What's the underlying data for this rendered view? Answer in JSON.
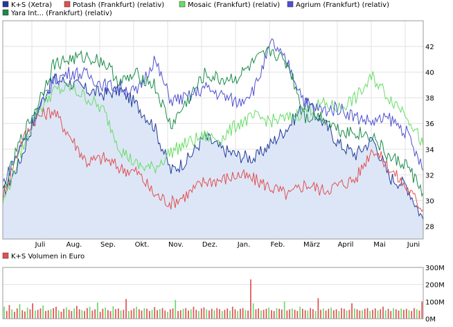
{
  "chart_data": [
    {
      "type": "line",
      "title": "",
      "xlabel": "",
      "ylabel": "",
      "ylim": [
        27,
        44
      ],
      "yticks": [
        28,
        30,
        32,
        34,
        36,
        38,
        40,
        42
      ],
      "grid": true,
      "legend_position": "top-left",
      "x_tick_labels": [
        "Juli",
        "Aug.",
        "Sep.",
        "Okt.",
        "Nov.",
        "Dez.",
        "Jan.",
        "Feb.",
        "März",
        "April",
        "Mai",
        "Juni"
      ],
      "x": [
        0,
        0.5,
        1,
        1.5,
        2,
        2.5,
        3,
        3.5,
        4,
        4.5,
        5,
        5.5,
        6,
        6.5,
        7,
        7.5,
        8,
        8.5,
        9,
        9.5,
        10,
        10.5,
        11,
        11.5,
        12,
        12.5
      ],
      "series": [
        {
          "name": "K+S (Xetra)",
          "color": "#1f3b9a",
          "fill": "#dde6f7",
          "values": [
            30.5,
            33,
            36.8,
            39.5,
            39.2,
            38.6,
            38.3,
            38.6,
            37.4,
            35.8,
            32.3,
            33.2,
            35.0,
            34.0,
            33.5,
            33.3,
            34.5,
            35.8,
            37.6,
            36.2,
            34.4,
            33.6,
            34.8,
            31.8,
            31.2,
            28.5
          ]
        },
        {
          "name": "Potash (Frankfurt) (relativ)",
          "color": "#e05050",
          "values": [
            30.2,
            34.3,
            36.5,
            37.0,
            35.0,
            33.0,
            33.3,
            32.5,
            32.2,
            30.5,
            29.8,
            30.5,
            31.5,
            31.6,
            32.0,
            31.6,
            31.0,
            30.4,
            31.3,
            30.8,
            31.2,
            31.7,
            34.1,
            32.5,
            31.0,
            29.3
          ]
        },
        {
          "name": "Mosaic (Frankfurt) (relativ)",
          "color": "#66dd66",
          "values": [
            29.8,
            33.5,
            36.8,
            38.5,
            38.8,
            38.0,
            37.0,
            34.0,
            32.7,
            32.5,
            33.8,
            34.5,
            35.0,
            34.8,
            36.0,
            36.5,
            36.2,
            36.4,
            37.0,
            37.5,
            37.2,
            38.0,
            39.6,
            38.0,
            36.8,
            34.3
          ]
        },
        {
          "name": "Agrium (Frankfurt) (relativ)",
          "color": "#5050d0",
          "values": [
            31.3,
            34.0,
            36.8,
            39.3,
            40.0,
            39.8,
            39.0,
            38.8,
            38.4,
            41.0,
            37.8,
            38.0,
            38.8,
            38.2,
            37.6,
            38.8,
            42.3,
            40.5,
            37.6,
            37.0,
            37.2,
            36.5,
            36.1,
            36.4,
            35.3,
            32.3
          ]
        },
        {
          "name": "Yara Int... (Frankfurt) (relativ)",
          "color": "#1a8a4a",
          "values": [
            30.6,
            34.5,
            37.3,
            40.6,
            41.0,
            41.2,
            40.8,
            39.2,
            39.8,
            39.0,
            35.8,
            37.8,
            39.8,
            39.4,
            39.6,
            40.8,
            41.7,
            40.5,
            36.5,
            36.6,
            35.5,
            35.3,
            35.0,
            33.3,
            32.8,
            30.6
          ]
        }
      ]
    },
    {
      "type": "bar",
      "title": "",
      "legend": [
        "K+S Volumen in Euro"
      ],
      "legend_color": "#e05050",
      "bar_colors": [
        "#e05050",
        "#66dd66"
      ],
      "ylim": [
        0,
        300
      ],
      "y_tick_labels": [
        "0M",
        "100M",
        "200M",
        "300M"
      ],
      "yticks": [
        0,
        100,
        200,
        300
      ],
      "grid": true,
      "values": [
        70,
        45,
        80,
        55,
        40,
        60,
        85,
        50,
        42,
        65,
        55,
        90,
        48,
        52,
        60,
        78,
        45,
        50,
        55,
        62,
        70,
        48,
        40,
        58,
        66,
        52,
        45,
        60,
        75,
        55,
        50,
        45,
        62,
        70,
        48,
        55,
        95,
        40,
        58,
        65,
        50,
        44,
        72,
        56,
        60,
        48,
        52,
        115,
        45,
        50,
        60,
        70,
        55,
        48,
        62,
        58,
        45,
        52,
        68,
        50,
        56,
        62,
        48,
        40,
        55,
        60,
        110,
        45,
        50,
        58,
        62,
        48,
        55,
        70,
        52,
        45,
        60,
        66,
        54,
        48,
        58,
        50,
        62,
        56,
        45,
        52,
        60,
        48,
        70,
        55,
        45,
        58,
        62,
        50,
        48,
        230,
        90,
        55,
        60,
        48,
        52,
        58,
        65,
        50,
        45,
        62,
        58,
        54,
        100,
        48,
        55,
        60,
        52,
        45,
        70,
        58,
        50,
        48,
        62,
        56,
        45,
        120,
        52,
        60,
        48,
        58,
        65,
        50,
        55,
        45,
        62,
        58,
        48,
        52,
        90,
        60,
        55,
        48,
        50,
        58,
        62,
        45,
        52,
        60,
        48,
        55,
        70,
        50,
        58,
        45,
        62,
        55,
        48,
        60,
        52,
        58,
        50,
        45,
        62,
        55,
        48,
        100
      ]
    }
  ]
}
